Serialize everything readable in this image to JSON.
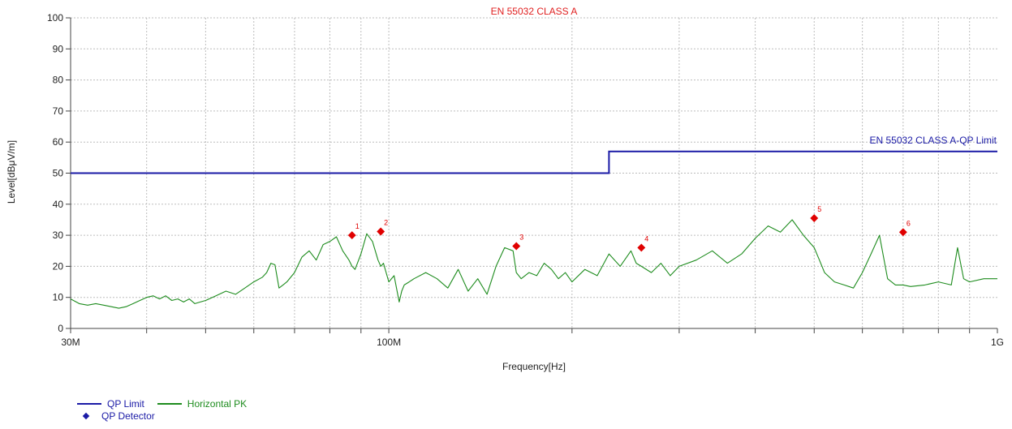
{
  "chart_data": {
    "type": "line",
    "title": "EN 55032 CLASS A",
    "xlabel": "Frequency[Hz]",
    "ylabel": "Level[dBμV/m]",
    "x_scale": "log",
    "xlim": [
      30,
      1000
    ],
    "ylim": [
      0,
      100
    ],
    "x_ticks": [
      {
        "value": 30,
        "label": "30M"
      },
      {
        "value": 100,
        "label": "100M"
      },
      {
        "value": 1000,
        "label": "1G"
      }
    ],
    "x_grid": [
      40,
      50,
      60,
      70,
      80,
      90,
      200,
      300,
      400,
      500,
      600,
      700,
      800,
      900
    ],
    "y_ticks": [
      0,
      10,
      20,
      30,
      40,
      50,
      60,
      70,
      80,
      90,
      100
    ],
    "grid": true,
    "colors": {
      "limit": "#1a1aa6",
      "trace": "#1e8c1e",
      "markers": "#e00000",
      "title": "#e02020"
    },
    "limit_label": "EN 55032 CLASS A-QP Limit",
    "series": [
      {
        "name": "QP Limit",
        "x": [
          30,
          230,
          230,
          1000
        ],
        "y": [
          50,
          50,
          57,
          57
        ]
      },
      {
        "name": "Horizontal PK",
        "x": [
          30,
          31,
          32,
          33,
          34,
          35,
          36,
          37,
          38,
          39,
          40,
          41,
          42,
          43,
          44,
          45,
          46,
          47,
          48,
          49,
          50,
          52,
          54,
          56,
          58,
          60,
          62,
          63,
          64,
          65,
          66,
          67,
          68,
          70,
          72,
          74,
          76,
          78,
          80,
          82,
          84,
          86,
          87,
          88,
          90,
          92,
          94,
          96,
          97,
          98,
          100,
          102,
          104,
          105,
          106,
          108,
          110,
          115,
          120,
          125,
          130,
          135,
          140,
          145,
          150,
          155,
          160,
          162,
          165,
          170,
          175,
          180,
          185,
          190,
          195,
          200,
          210,
          220,
          230,
          240,
          250,
          255,
          260,
          270,
          280,
          290,
          300,
          320,
          340,
          360,
          380,
          400,
          420,
          440,
          460,
          480,
          500,
          510,
          520,
          540,
          560,
          580,
          600,
          620,
          640,
          660,
          680,
          700,
          720,
          760,
          800,
          840,
          860,
          880,
          900,
          950,
          1000
        ],
        "y": [
          9.5,
          8,
          7.5,
          8,
          7.5,
          7,
          6.5,
          7,
          8,
          9,
          10,
          10.5,
          9.5,
          10.5,
          9,
          9.5,
          8.5,
          9.5,
          8,
          8.5,
          9,
          10.5,
          12,
          11,
          13,
          15,
          16.5,
          18,
          21,
          20.5,
          13,
          14,
          15,
          18,
          23,
          25,
          22,
          27,
          28,
          29.5,
          25,
          22,
          20,
          19,
          24,
          30.5,
          28,
          22,
          20,
          21,
          15,
          17,
          8.5,
          12,
          14,
          15,
          16,
          18,
          16,
          13,
          19,
          12,
          16,
          11,
          20,
          26,
          25,
          18,
          16,
          18,
          17,
          21,
          19,
          16,
          18,
          15,
          19,
          17,
          24,
          20,
          25,
          21,
          20,
          18,
          21,
          17,
          20,
          22,
          25,
          21,
          24,
          29,
          33,
          31,
          35,
          30,
          26,
          22,
          18,
          15,
          14,
          13,
          18,
          24,
          30,
          16,
          14,
          14,
          13.5,
          14,
          15,
          14,
          26,
          16,
          15,
          16,
          16
        ]
      },
      {
        "name": "QP Detector",
        "markers": [
          {
            "label": "1",
            "x": 87,
            "y": 30
          },
          {
            "label": "2",
            "x": 97,
            "y": 31.2
          },
          {
            "label": "3",
            "x": 162,
            "y": 26.5
          },
          {
            "label": "4",
            "x": 260,
            "y": 26
          },
          {
            "label": "5",
            "x": 500,
            "y": 35.5
          },
          {
            "label": "6",
            "x": 700,
            "y": 31
          }
        ]
      }
    ]
  },
  "legend": {
    "items": [
      {
        "name": "QP Limit",
        "color": "#1a1aa6",
        "kind": "line"
      },
      {
        "name": "Horizontal PK",
        "color": "#1e8c1e",
        "kind": "line"
      },
      {
        "name": "QP Detector",
        "color": "#1a1aa6",
        "kind": "diamond"
      }
    ]
  }
}
